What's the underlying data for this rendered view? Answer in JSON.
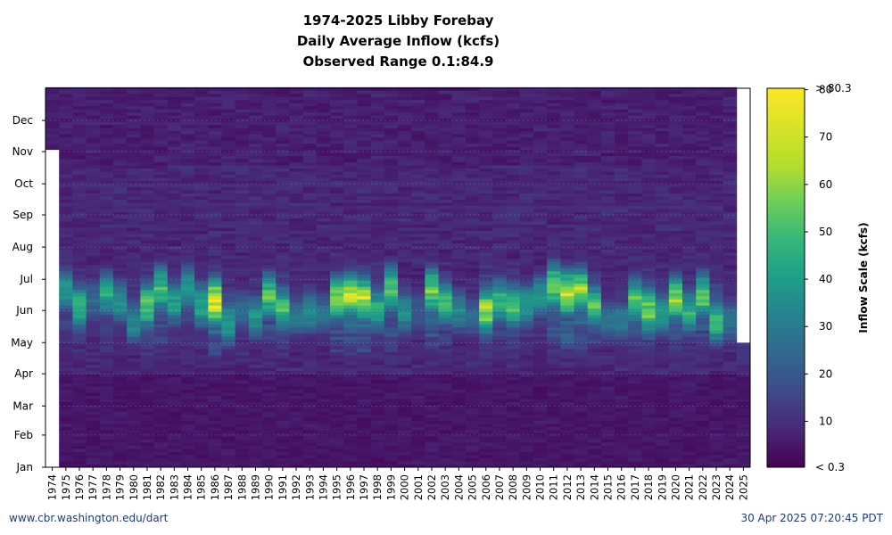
{
  "title": {
    "line1": "1974-2025 Libby Forebay",
    "line2": "Daily Average Inflow (kcfs)",
    "line3": "Observed Range 0.1:84.9"
  },
  "footer": {
    "source": "www.cbr.washington.edu/dart",
    "timestamp": "30 Apr 2025 07:20:45 PDT"
  },
  "chart_data": {
    "type": "heatmap",
    "title": "1974-2025 Libby Forebay Daily Average Inflow (kcfs) Observed Range 0.1:84.9",
    "x_label": "",
    "y_label": "",
    "years": [
      "1974",
      "1975",
      "1976",
      "1977",
      "1978",
      "1979",
      "1980",
      "1981",
      "1982",
      "1983",
      "1984",
      "1985",
      "1986",
      "1987",
      "1988",
      "1989",
      "1990",
      "1991",
      "1992",
      "1993",
      "1994",
      "1995",
      "1996",
      "1997",
      "1998",
      "1999",
      "2000",
      "2001",
      "2002",
      "2003",
      "2004",
      "2005",
      "2006",
      "2007",
      "2008",
      "2009",
      "2010",
      "2011",
      "2012",
      "2013",
      "2014",
      "2015",
      "2016",
      "2017",
      "2018",
      "2019",
      "2020",
      "2021",
      "2022",
      "2023",
      "2024",
      "2025"
    ],
    "months": [
      "Jan",
      "Feb",
      "Mar",
      "Apr",
      "May",
      "Jun",
      "Jul",
      "Aug",
      "Sep",
      "Oct",
      "Nov",
      "Dec"
    ],
    "month_day_starts": [
      1,
      32,
      60,
      91,
      121,
      152,
      182,
      213,
      244,
      274,
      305,
      335
    ],
    "value_unit": "kcfs",
    "colorbar": {
      "label": "Inflow Scale (kcfs)",
      "min_label": "< 0.3",
      "max_label": "> 80.3",
      "ticks": [
        10,
        20,
        30,
        40,
        50,
        60,
        70,
        80
      ],
      "range": [
        0.3,
        80.3
      ],
      "colormap": "viridis"
    },
    "data_coverage": {
      "1974_first_day": 305,
      "2025_last_day": 120
    },
    "annual_peak_inflow_approx": [
      {
        "year": "1974",
        "peak": 0,
        "peak_day": 0
      },
      {
        "year": "1975",
        "peak": 42,
        "peak_day": 170
      },
      {
        "year": "1976",
        "peak": 52,
        "peak_day": 154
      },
      {
        "year": "1977",
        "peak": 28,
        "peak_day": 160
      },
      {
        "year": "1978",
        "peak": 48,
        "peak_day": 167
      },
      {
        "year": "1979",
        "peak": 40,
        "peak_day": 160
      },
      {
        "year": "1980",
        "peak": 38,
        "peak_day": 140
      },
      {
        "year": "1981",
        "peak": 60,
        "peak_day": 156
      },
      {
        "year": "1982",
        "peak": 55,
        "peak_day": 172
      },
      {
        "year": "1983",
        "peak": 44,
        "peak_day": 158
      },
      {
        "year": "1984",
        "peak": 46,
        "peak_day": 172
      },
      {
        "year": "1985",
        "peak": 48,
        "peak_day": 156
      },
      {
        "year": "1986",
        "peak": 80,
        "peak_day": 159
      },
      {
        "year": "1987",
        "peak": 45,
        "peak_day": 138
      },
      {
        "year": "1988",
        "peak": 30,
        "peak_day": 150
      },
      {
        "year": "1989",
        "peak": 42,
        "peak_day": 145
      },
      {
        "year": "1990",
        "peak": 58,
        "peak_day": 165
      },
      {
        "year": "1991",
        "peak": 56,
        "peak_day": 152
      },
      {
        "year": "1992",
        "peak": 32,
        "peak_day": 146
      },
      {
        "year": "1993",
        "peak": 40,
        "peak_day": 150
      },
      {
        "year": "1994",
        "peak": 30,
        "peak_day": 148
      },
      {
        "year": "1995",
        "peak": 62,
        "peak_day": 162
      },
      {
        "year": "1996",
        "peak": 70,
        "peak_day": 165
      },
      {
        "year": "1997",
        "peak": 72,
        "peak_day": 162
      },
      {
        "year": "1998",
        "peak": 48,
        "peak_day": 152
      },
      {
        "year": "1999",
        "peak": 60,
        "peak_day": 172
      },
      {
        "year": "2000",
        "peak": 40,
        "peak_day": 150
      },
      {
        "year": "2001",
        "peak": 24,
        "peak_day": 150
      },
      {
        "year": "2002",
        "peak": 62,
        "peak_day": 170
      },
      {
        "year": "2003",
        "peak": 54,
        "peak_day": 158
      },
      {
        "year": "2004",
        "peak": 36,
        "peak_day": 150
      },
      {
        "year": "2005",
        "peak": 28,
        "peak_day": 145
      },
      {
        "year": "2006",
        "peak": 68,
        "peak_day": 150
      },
      {
        "year": "2007",
        "peak": 52,
        "peak_day": 160
      },
      {
        "year": "2008",
        "peak": 56,
        "peak_day": 155
      },
      {
        "year": "2009",
        "peak": 44,
        "peak_day": 155
      },
      {
        "year": "2010",
        "peak": 40,
        "peak_day": 165
      },
      {
        "year": "2011",
        "peak": 62,
        "peak_day": 175
      },
      {
        "year": "2012",
        "peak": 75,
        "peak_day": 167
      },
      {
        "year": "2013",
        "peak": 66,
        "peak_day": 170
      },
      {
        "year": "2014",
        "peak": 56,
        "peak_day": 155
      },
      {
        "year": "2015",
        "peak": 30,
        "peak_day": 140
      },
      {
        "year": "2016",
        "peak": 34,
        "peak_day": 140
      },
      {
        "year": "2017",
        "peak": 60,
        "peak_day": 160
      },
      {
        "year": "2018",
        "peak": 64,
        "peak_day": 150
      },
      {
        "year": "2019",
        "peak": 42,
        "peak_day": 148
      },
      {
        "year": "2020",
        "peak": 66,
        "peak_day": 162
      },
      {
        "year": "2021",
        "peak": 50,
        "peak_day": 150
      },
      {
        "year": "2022",
        "peak": 62,
        "peak_day": 165
      },
      {
        "year": "2023",
        "peak": 52,
        "peak_day": 140
      },
      {
        "year": "2024",
        "peak": 32,
        "peak_day": 140
      },
      {
        "year": "2025",
        "peak": 14,
        "peak_day": 110
      }
    ]
  }
}
